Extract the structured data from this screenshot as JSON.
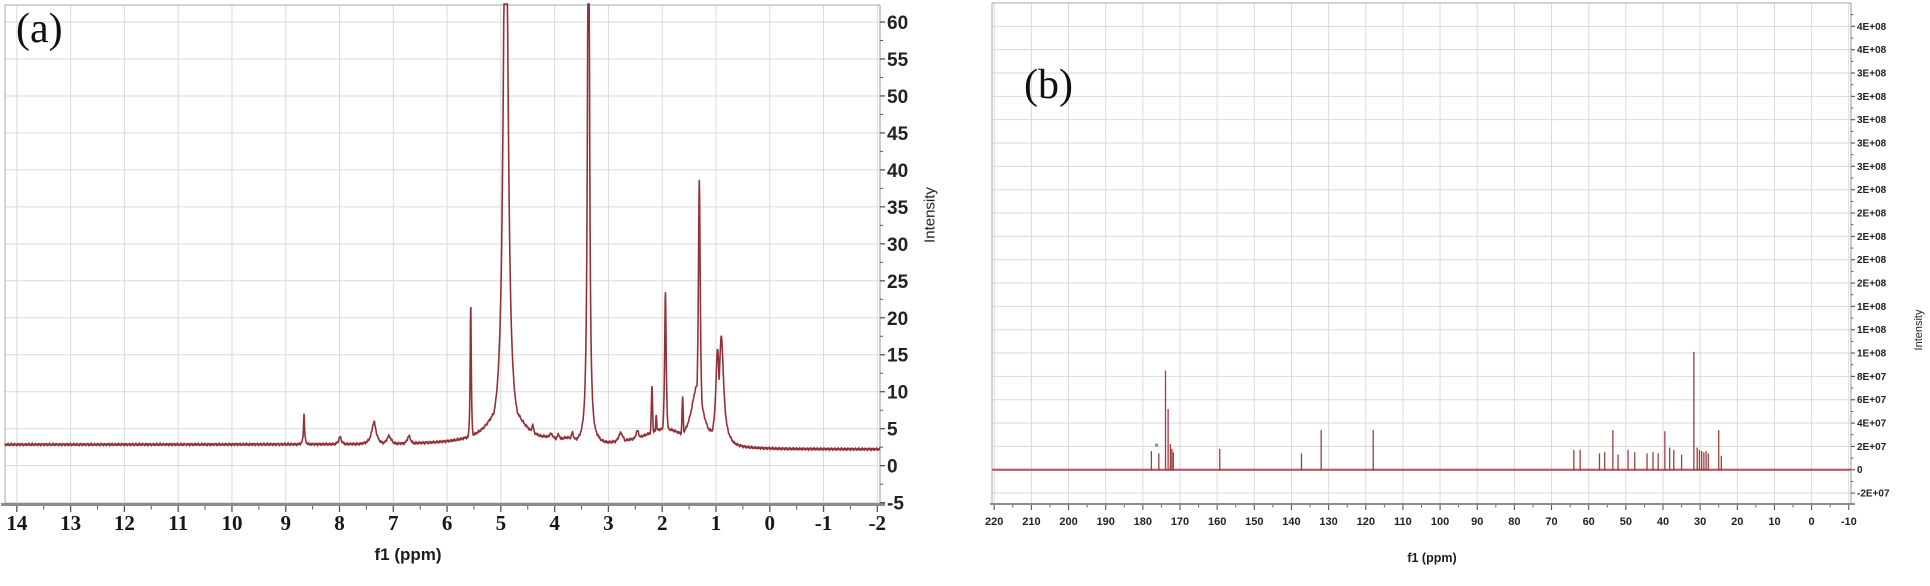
{
  "page": {
    "description": "Two NMR spectra panels side by side",
    "colors": {
      "trace": "#8f3338",
      "stick": "#9c3f44",
      "baseline_b": "#ad5158",
      "grid": "#dadada",
      "border": "#a8a8a8",
      "axis": "#8c8c8c",
      "tick": "#555555",
      "marker_blue": "#7d88c4",
      "background": "#ffffff"
    }
  },
  "chart_data": [
    {
      "id": "a",
      "type": "line",
      "panel_label": "(a)",
      "xlabel": "f1 (ppm)",
      "ylabel": "Intensity",
      "x_axis": {
        "min": -2,
        "max": 14,
        "tick_step": 1,
        "ticks": [
          14,
          13,
          12,
          11,
          10,
          9,
          8,
          7,
          6,
          5,
          4,
          3,
          2,
          1,
          0,
          -1,
          -2
        ],
        "reversed": true
      },
      "y_axis": {
        "min": -5,
        "max": 60,
        "tick_step": 5,
        "ticks": [
          60,
          55,
          50,
          45,
          40,
          35,
          30,
          25,
          20,
          15,
          10,
          5,
          0,
          -5
        ],
        "side": "right"
      },
      "grid": true,
      "baseline_intensity_left": 2.85,
      "baseline_intensity_right": 2.2,
      "peaks_format": [
        "ppm",
        "apex_intensity",
        "hwhm_ppm"
      ],
      "peaks": [
        [
          8.66,
          7.0,
          0.012
        ],
        [
          7.99,
          3.9,
          0.03
        ],
        [
          7.36,
          5.9,
          0.05
        ],
        [
          7.08,
          4.0,
          0.05
        ],
        [
          6.71,
          4.0,
          0.04
        ],
        [
          5.56,
          22.2,
          0.012
        ],
        [
          4.91,
          90,
          0.05
        ],
        [
          4.91,
          9.5,
          0.3
        ],
        [
          4.41,
          5.5,
          0.04
        ],
        [
          4.25,
          4.0,
          0.45
        ],
        [
          4.07,
          4.3,
          0.08
        ],
        [
          3.93,
          4.2,
          0.05
        ],
        [
          3.75,
          3.8,
          0.3
        ],
        [
          3.67,
          4.5,
          0.035
        ],
        [
          3.37,
          95,
          0.02
        ],
        [
          3.37,
          7.0,
          0.1
        ],
        [
          3.2,
          4.2,
          0.04
        ],
        [
          2.77,
          4.4,
          0.06
        ],
        [
          2.46,
          4.7,
          0.05
        ],
        [
          2.19,
          10.9,
          0.015
        ],
        [
          2.11,
          7.0,
          0.015
        ],
        [
          1.95,
          5.0,
          0.45
        ],
        [
          1.94,
          23.4,
          0.018
        ],
        [
          1.62,
          9.3,
          0.015
        ],
        [
          1.35,
          10.8,
          0.13
        ],
        [
          1.31,
          38.6,
          0.022
        ],
        [
          1.1,
          4.8,
          0.3
        ],
        [
          0.97,
          15.8,
          0.04
        ],
        [
          0.9,
          17.5,
          0.05
        ]
      ],
      "offscale_peaks_ppm": [
        4.91,
        3.37
      ]
    },
    {
      "id": "b",
      "type": "stick",
      "panel_label": "(b)",
      "xlabel": "f1 (ppm)",
      "ylabel": "Intensity",
      "x_axis": {
        "min": -10,
        "max": 220,
        "tick_step": 10,
        "ticks": [
          220,
          210,
          200,
          190,
          180,
          170,
          160,
          150,
          140,
          130,
          120,
          110,
          100,
          90,
          80,
          70,
          60,
          50,
          40,
          30,
          20,
          10,
          0,
          -10
        ],
        "reversed": true
      },
      "y_axis": {
        "side": "right",
        "tick_step": 20000000,
        "ticks": [
          {
            "v": 380000000,
            "label": "4E+08"
          },
          {
            "v": 360000000,
            "label": "4E+08"
          },
          {
            "v": 340000000,
            "label": "3E+08"
          },
          {
            "v": 320000000,
            "label": "3E+08"
          },
          {
            "v": 300000000,
            "label": "3E+08"
          },
          {
            "v": 280000000,
            "label": "3E+08"
          },
          {
            "v": 260000000,
            "label": "3E+08"
          },
          {
            "v": 240000000,
            "label": "2E+08"
          },
          {
            "v": 220000000,
            "label": "2E+08"
          },
          {
            "v": 200000000,
            "label": "2E+08"
          },
          {
            "v": 180000000,
            "label": "2E+08"
          },
          {
            "v": 160000000,
            "label": "2E+08"
          },
          {
            "v": 140000000,
            "label": "1E+08"
          },
          {
            "v": 120000000,
            "label": "1E+08"
          },
          {
            "v": 100000000,
            "label": "1E+08"
          },
          {
            "v": 80000000,
            "label": "8E+07"
          },
          {
            "v": 60000000,
            "label": "6E+07"
          },
          {
            "v": 40000000,
            "label": "4E+07"
          },
          {
            "v": 20000000,
            "label": "2E+07"
          },
          {
            "v": 0,
            "label": "0"
          },
          {
            "v": -20000000,
            "label": "-2E+07"
          }
        ]
      },
      "grid": true,
      "baseline_intensity": 0,
      "peaks_format": [
        "ppm",
        "intensity"
      ],
      "peaks": [
        [
          177.7,
          16000000
        ],
        [
          175.7,
          14000000
        ],
        [
          173.9,
          85000000
        ],
        [
          173.2,
          52000000
        ],
        [
          172.6,
          22000000
        ],
        [
          172.2,
          18000000
        ],
        [
          171.8,
          15000000
        ],
        [
          159.3,
          18000000
        ],
        [
          137.3,
          14000000
        ],
        [
          132.0,
          34000000
        ],
        [
          118.0,
          34000000
        ],
        [
          64.0,
          17000000
        ],
        [
          62.3,
          17000000
        ],
        [
          57.1,
          14000000
        ],
        [
          55.7,
          15000000
        ],
        [
          53.5,
          34000000
        ],
        [
          52.1,
          13000000
        ],
        [
          49.4,
          17000000
        ],
        [
          47.6,
          15000000
        ],
        [
          44.3,
          14000000
        ],
        [
          42.7,
          15000000
        ],
        [
          41.3,
          14000000
        ],
        [
          39.5,
          33000000
        ],
        [
          38.2,
          19000000
        ],
        [
          37.1,
          17000000
        ],
        [
          35.0,
          13000000
        ],
        [
          31.7,
          101000000
        ],
        [
          30.8,
          19000000
        ],
        [
          30.2,
          17000000
        ],
        [
          29.6,
          16000000
        ],
        [
          29.0,
          15000000
        ],
        [
          28.4,
          16000000
        ],
        [
          27.8,
          14000000
        ],
        [
          25.0,
          34000000
        ],
        [
          24.3,
          12000000
        ]
      ],
      "blue_marker": {
        "ppm": 176.3,
        "intensity": 21000000
      }
    }
  ]
}
